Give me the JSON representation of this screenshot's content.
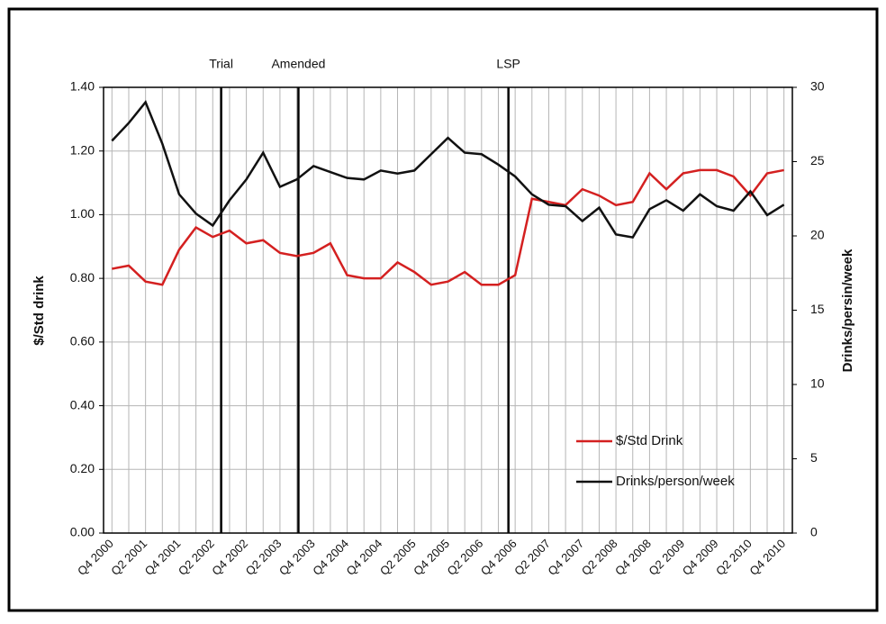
{
  "chart_data": {
    "type": "line",
    "y_label": "$/Std drink",
    "y2_label": "Drinks/persin/week",
    "categories": [
      "Q4 2000",
      null,
      "Q2 2001",
      null,
      "Q4 2001",
      null,
      "Q2 2002",
      null,
      "Q4 2002",
      null,
      "Q2 2003",
      null,
      "Q4 2003",
      null,
      "Q4 2004",
      null,
      "Q4 2004",
      null,
      "Q2 2005",
      null,
      "Q4 2005",
      null,
      "Q2 2006",
      null,
      "Q4 2006",
      null,
      "Q2 2007",
      null,
      "Q4 2007",
      null,
      "Q2 2008",
      null,
      "Q4 2008",
      null,
      "Q2 2009",
      null,
      "Q4 2009",
      null,
      "Q2 2010",
      null,
      "Q4 2010"
    ],
    "series": [
      {
        "name": "$/Std Drink",
        "color": "#d42020",
        "values": [
          0.83,
          0.84,
          0.79,
          0.78,
          0.89,
          0.96,
          0.93,
          0.95,
          0.91,
          0.92,
          0.88,
          0.87,
          0.88,
          0.91,
          0.81,
          0.8,
          0.8,
          0.85,
          0.82,
          0.78,
          0.79,
          0.82,
          0.78,
          0.78,
          0.81,
          1.05,
          1.04,
          1.03,
          1.08,
          1.06,
          1.03,
          1.04,
          1.13,
          1.08,
          1.13,
          1.14,
          1.14,
          1.12,
          1.06,
          1.13,
          1.14
        ]
      },
      {
        "name": "Drinks/person/week",
        "color": "#111111",
        "axis": "y2",
        "values": [
          26.4,
          27.6,
          29.0,
          26.2,
          22.8,
          21.5,
          20.7,
          22.4,
          23.8,
          25.6,
          23.3,
          23.8,
          24.7,
          24.3,
          23.9,
          23.8,
          24.4,
          24.2,
          24.4,
          25.5,
          26.6,
          25.6,
          25.5,
          24.8,
          24.0,
          22.8,
          22.1,
          22.0,
          21.0,
          21.9,
          20.1,
          19.9,
          21.8,
          22.4,
          21.7,
          22.8,
          22.0,
          21.7,
          23.0,
          21.4,
          22.1
        ]
      }
    ],
    "ylim": [
      0,
      1.4
    ],
    "yticks": [
      {
        "value": 0,
        "label": "0.00"
      },
      {
        "value": 0.2,
        "label": "0.20"
      },
      {
        "value": 0.4,
        "label": "0.40"
      },
      {
        "value": 0.6,
        "label": "0.60"
      },
      {
        "value": 0.8,
        "label": "0.80"
      },
      {
        "value": 1,
        "label": "1.00"
      },
      {
        "value": 1.2,
        "label": "1.20"
      },
      {
        "value": 1.4,
        "label": "1.40"
      }
    ],
    "y2lim": [
      0,
      30
    ],
    "y2ticks": [
      0,
      5,
      10,
      15,
      20,
      25,
      30
    ],
    "events": [
      {
        "label": "Trial",
        "x": 6.5
      },
      {
        "label": "Amended",
        "x": 11.1
      },
      {
        "label": "LSP",
        "x": 23.6
      }
    ],
    "grid": true,
    "legend": "lower right"
  }
}
